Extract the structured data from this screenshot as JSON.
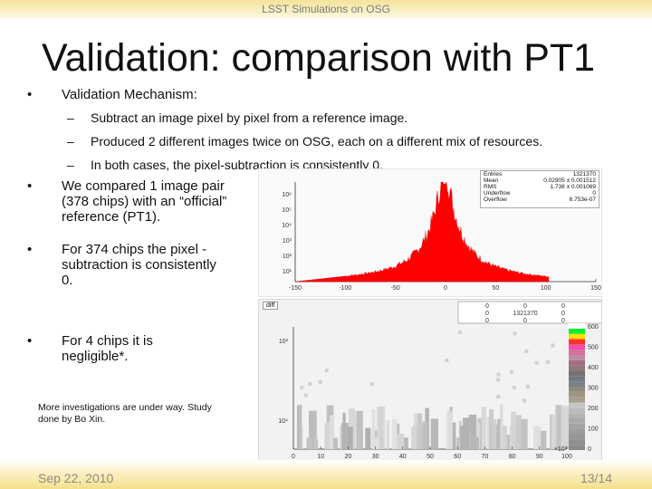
{
  "header": {
    "text": "LSST Simulations on OSG"
  },
  "title": "Validation: comparison with PT1",
  "bullets": [
    {
      "marker": "•",
      "text": "Validation Mechanism:"
    },
    {
      "marker": "•",
      "text": "We compared 1 image pair (378 chips) with an “official” reference (PT1)."
    },
    {
      "marker": "•",
      "text": "For 374 chips the pixel -subtraction is consistently 0."
    },
    {
      "marker": "•",
      "text": "For 4 chips it is negligible*."
    }
  ],
  "sub_bullets": [
    {
      "marker": "–",
      "text": "Subtract an image pixel by pixel from a reference image."
    },
    {
      "marker": "–",
      "text": "Produced 2 different images twice on OSG, each on a different mix of resources."
    },
    {
      "marker": "–",
      "text": "In both cases, the pixel-subtraction is consistently 0."
    }
  ],
  "note": "More investigations are under way. Study done by Bo Xin.",
  "footer": {
    "date": "Sep 22, 2010",
    "page": "13/14"
  },
  "stats": {
    "rows": [
      {
        "label": "Entries",
        "value": "1321370"
      },
      {
        "label": "Mean",
        "value": "0.02905 ± 0.001512"
      },
      {
        "label": "RMS",
        "value": "1.738 ± 0.001069"
      },
      {
        "label": "Underflow",
        "value": "0"
      },
      {
        "label": "Overflow",
        "value": "6.753e-07"
      }
    ]
  },
  "histogram": {
    "fill_color": "#ff0000",
    "x_ticks": [
      "-150",
      "-100",
      "-50",
      "0",
      "50",
      "100",
      "150"
    ],
    "y_ticks": [
      "10⁶",
      "10⁵",
      "10⁴",
      "10³",
      "10²",
      "10¹"
    ]
  },
  "diff_plot": {
    "tag": "diff",
    "grid_values": [
      "0",
      "0",
      "0",
      "0",
      "1321370",
      "0",
      "0",
      "0",
      "0"
    ],
    "x_ticks": [
      "0",
      "10",
      "20",
      "30",
      "40",
      "50",
      "60",
      "70",
      "80",
      "90",
      "100"
    ],
    "y_ticks": [
      "10³",
      "10⁴"
    ],
    "palette_labels": [
      "600",
      "500",
      "400",
      "300",
      "200",
      "100",
      "0"
    ],
    "palette_exponent": "×10³",
    "palette_colors": [
      "#8a8a8a",
      "#909090",
      "#969696",
      "#9c9c9c",
      "#a3a3a3",
      "#aaaaaa",
      "#b3b3b3",
      "#bcbcbc",
      "#c5c5c5",
      "#a89f8f",
      "#9e9585",
      "#8f8a7c",
      "#7c7f86",
      "#6f7a86",
      "#7b6f6c",
      "#8e7880",
      "#a36f7e",
      "#c08aa0",
      "#d66f9c",
      "#ee4fa0",
      "#ff3030",
      "#ffe000",
      "#00f030",
      "#ffffff"
    ]
  }
}
